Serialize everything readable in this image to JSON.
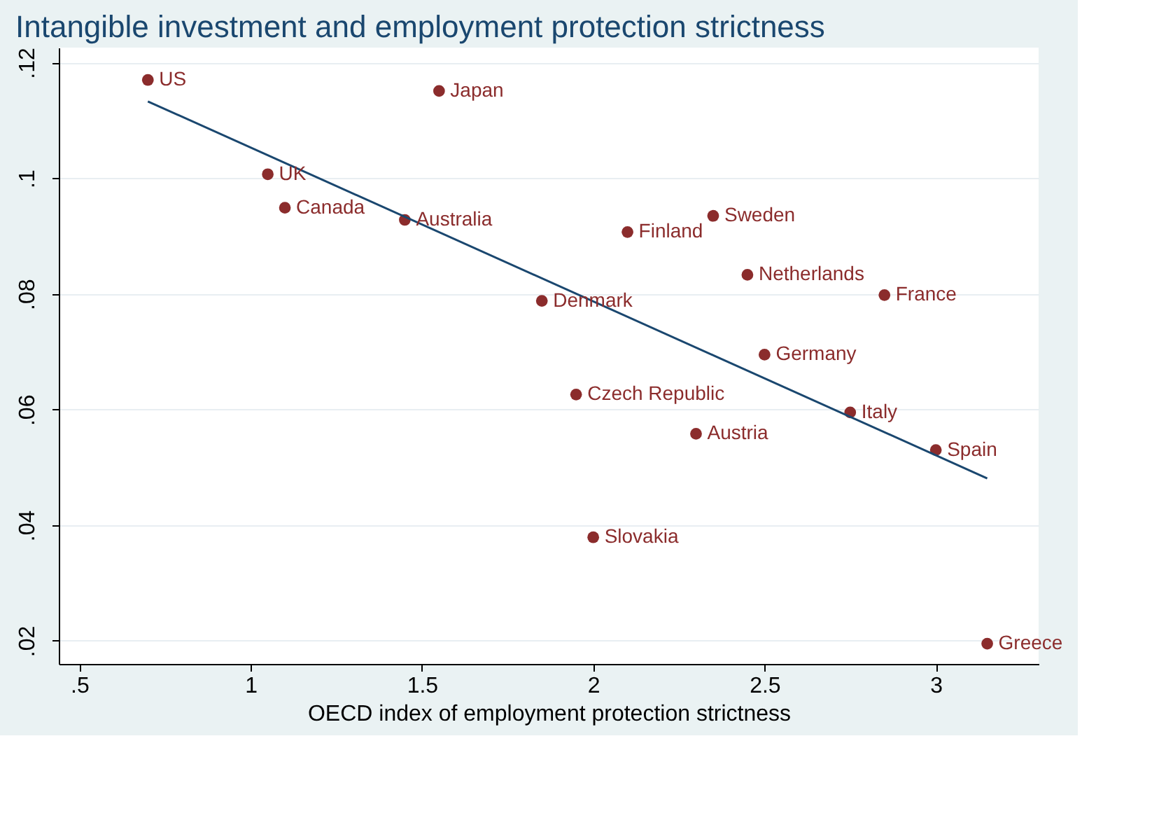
{
  "chart_data": {
    "type": "scatter",
    "title": "Intangible investment and employment protection strictness",
    "xlabel": "OECD index of employment protection strictness",
    "xlim": [
      0.44,
      3.3
    ],
    "ylim": [
      0.016,
      0.1226
    ],
    "xticks": [
      {
        "value": 0.5,
        "label": ".5"
      },
      1,
      1.5,
      2,
      2.5,
      3
    ],
    "yticks": [
      {
        "value": 0.02,
        "label": ".02"
      },
      {
        "value": 0.04,
        "label": ".04"
      },
      {
        "value": 0.06,
        "label": ".06"
      },
      {
        "value": 0.08,
        "label": ".08"
      },
      {
        "value": 0.1,
        "label": ".1"
      },
      {
        "value": 0.12,
        "label": ".12"
      }
    ],
    "grid": "y",
    "series": [
      {
        "marker": "circle",
        "color": "#8b2c2c",
        "x": [
          0.7,
          1.55,
          1.05,
          1.1,
          1.45,
          2.1,
          2.35,
          2.45,
          2.85,
          1.85,
          2.5,
          1.95,
          2.75,
          2.3,
          3.0,
          2.0,
          3.15
        ],
        "values": [
          0.117,
          0.1151,
          0.1007,
          0.0949,
          0.0928,
          0.0907,
          0.0935,
          0.0833,
          0.0798,
          0.0788,
          0.0695,
          0.0626,
          0.0595,
          0.0558,
          0.053,
          0.0379,
          0.0195
        ]
      },
      {
        "type": "line",
        "marker": "none",
        "line_style": "solid",
        "color": "#1a476f",
        "x": [
          0.7,
          3.15
        ],
        "values": [
          0.1133,
          0.0481
        ]
      }
    ],
    "annotations": [
      {
        "text": "US",
        "x": 0.7,
        "y": 0.117
      },
      {
        "text": "Japan",
        "x": 1.55,
        "y": 0.1151
      },
      {
        "text": "UK",
        "x": 1.05,
        "y": 0.1007
      },
      {
        "text": "Canada",
        "x": 1.1,
        "y": 0.0949
      },
      {
        "text": "Australia",
        "x": 1.45,
        "y": 0.0928
      },
      {
        "text": "Finland",
        "x": 2.1,
        "y": 0.0907
      },
      {
        "text": "Sweden",
        "x": 2.35,
        "y": 0.0935
      },
      {
        "text": "Netherlands",
        "x": 2.45,
        "y": 0.0833
      },
      {
        "text": "France",
        "x": 2.85,
        "y": 0.0798
      },
      {
        "text": "Denmark",
        "x": 1.85,
        "y": 0.0788
      },
      {
        "text": "Germany",
        "x": 2.5,
        "y": 0.0695
      },
      {
        "text": "Czech Republic",
        "x": 1.95,
        "y": 0.0626
      },
      {
        "text": "Italy",
        "x": 2.75,
        "y": 0.0595
      },
      {
        "text": "Austria",
        "x": 2.3,
        "y": 0.0558
      },
      {
        "text": "Spain",
        "x": 3.0,
        "y": 0.053
      },
      {
        "text": "Slovakia",
        "x": 2.0,
        "y": 0.0379
      },
      {
        "text": "Greece",
        "x": 3.15,
        "y": 0.0195
      }
    ]
  }
}
